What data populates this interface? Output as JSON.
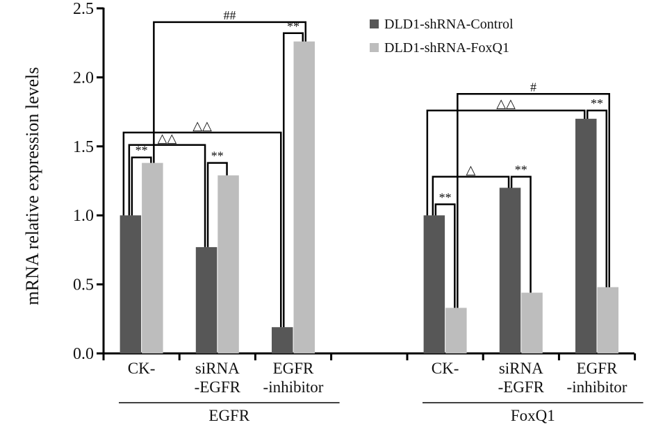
{
  "chart_data": {
    "type": "bar",
    "title": "",
    "xlabel": "",
    "ylabel": "mRNA relative expression levels",
    "ylim": [
      0,
      2.5
    ],
    "yticks": [
      "0.0",
      "0.5",
      "1.0",
      "1.5",
      "2.0",
      "2.5"
    ],
    "ytick_values": [
      0,
      0.5,
      1.0,
      1.5,
      2.0,
      2.5
    ],
    "grid": false,
    "legend_position": "top-right",
    "groups": [
      {
        "name": "EGFR",
        "categories": [
          [
            "CK-"
          ],
          [
            "siRNA",
            "-EGFR"
          ],
          [
            "EGFR",
            "-inhibitor"
          ]
        ]
      },
      {
        "name": "FoxQ1",
        "categories": [
          [
            "CK-"
          ],
          [
            "siRNA",
            "-EGFR"
          ],
          [
            "EGFR",
            "-inhibitor"
          ]
        ]
      }
    ],
    "series": [
      {
        "name": "DLD1-shRNA-Control",
        "color": "#575757",
        "values": [
          [
            1.0,
            0.77,
            0.19
          ],
          [
            1.0,
            1.2,
            1.7
          ]
        ]
      },
      {
        "name": "DLD1-shRNA-FoxQ1",
        "color": "#bdbdbd",
        "values": [
          [
            1.38,
            1.29,
            2.26
          ],
          [
            0.33,
            0.44,
            0.48
          ]
        ]
      }
    ],
    "annotations": [
      {
        "group": 0,
        "from": [
          0,
          0
        ],
        "to": [
          0,
          1
        ],
        "label": "**",
        "level": 1.42
      },
      {
        "group": 0,
        "from": [
          0,
          0
        ],
        "to": [
          1,
          0
        ],
        "label": "△△",
        "level": 1.51
      },
      {
        "group": 0,
        "from": [
          0,
          0
        ],
        "to": [
          2,
          0
        ],
        "label": "△△",
        "level": 1.6
      },
      {
        "group": 0,
        "from": [
          1,
          0
        ],
        "to": [
          1,
          1
        ],
        "label": "**",
        "level": 1.38
      },
      {
        "group": 0,
        "from": [
          2,
          0
        ],
        "to": [
          2,
          1
        ],
        "label": "**",
        "level": 2.32
      },
      {
        "group": 0,
        "from": [
          0,
          1
        ],
        "to": [
          2,
          1
        ],
        "label": "##",
        "level": 2.4
      },
      {
        "group": 1,
        "from": [
          0,
          0
        ],
        "to": [
          0,
          1
        ],
        "label": "**",
        "level": 1.08
      },
      {
        "group": 1,
        "from": [
          0,
          0
        ],
        "to": [
          1,
          0
        ],
        "label": "△",
        "level": 1.28
      },
      {
        "group": 1,
        "from": [
          1,
          0
        ],
        "to": [
          1,
          1
        ],
        "label": "**",
        "level": 1.28
      },
      {
        "group": 1,
        "from": [
          0,
          0
        ],
        "to": [
          2,
          0
        ],
        "label": "△△",
        "level": 1.76
      },
      {
        "group": 1,
        "from": [
          2,
          0
        ],
        "to": [
          2,
          1
        ],
        "label": "**",
        "level": 1.76
      },
      {
        "group": 1,
        "from": [
          0,
          1
        ],
        "to": [
          2,
          1
        ],
        "label": "#",
        "level": 1.88
      }
    ]
  }
}
